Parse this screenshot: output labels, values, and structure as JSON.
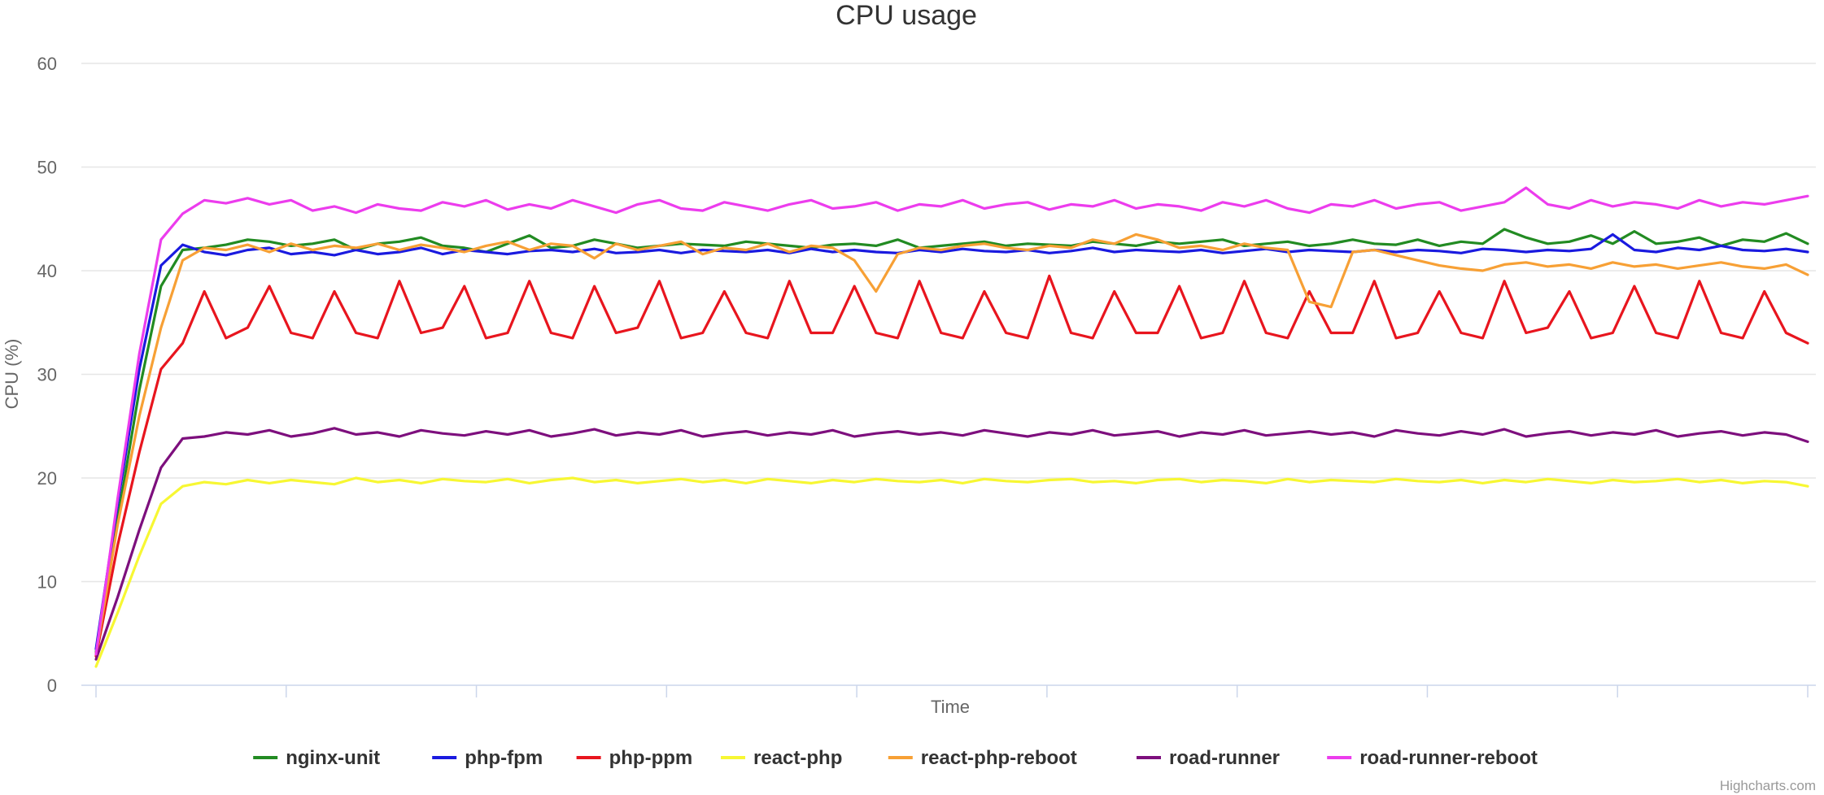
{
  "chart_data": {
    "type": "line",
    "title": "CPU usage",
    "xlabel": "Time",
    "ylabel": "CPU (%)",
    "ylim": [
      0,
      60
    ],
    "yticks": [
      0,
      10,
      20,
      30,
      40,
      50,
      60
    ],
    "grid": true,
    "legend_placement": "bottom-center",
    "credits": "Highcharts.com",
    "series": [
      {
        "name": "nginx-unit",
        "color": "#228b22",
        "values": [
          3.2,
          16.0,
          28.5,
          38.5,
          42.0,
          42.2,
          42.5,
          43.0,
          42.8,
          42.4,
          42.6,
          43.0,
          42.0,
          42.6,
          42.8,
          43.2,
          42.4,
          42.2,
          41.8,
          42.6,
          43.4,
          42.2,
          42.4,
          43.0,
          42.6,
          42.2,
          42.4,
          42.6,
          42.5,
          42.4,
          42.8,
          42.6,
          42.4,
          42.2,
          42.5,
          42.6,
          42.4,
          43.0,
          42.2,
          42.4,
          42.6,
          42.8,
          42.4,
          42.6,
          42.5,
          42.4,
          42.8,
          42.6,
          42.4,
          42.8,
          42.6,
          42.8,
          43.0,
          42.4,
          42.6,
          42.8,
          42.4,
          42.6,
          43.0,
          42.6,
          42.5,
          43.0,
          42.4,
          42.8,
          42.6,
          44.0,
          43.2,
          42.6,
          42.8,
          43.4,
          42.6,
          43.8,
          42.6,
          42.8,
          43.2,
          42.4,
          43.0,
          42.8,
          43.6,
          42.6
        ]
      },
      {
        "name": "php-fpm",
        "color": "#1a1adf",
        "values": [
          3.5,
          17.5,
          30.5,
          40.5,
          42.5,
          41.8,
          41.5,
          42.0,
          42.2,
          41.6,
          41.8,
          41.5,
          42.0,
          41.6,
          41.8,
          42.2,
          41.6,
          42.0,
          41.8,
          41.6,
          41.9,
          42.0,
          41.8,
          42.1,
          41.7,
          41.8,
          42.0,
          41.7,
          42.0,
          41.9,
          41.8,
          42.0,
          41.7,
          42.1,
          41.8,
          42.0,
          41.8,
          41.7,
          42.0,
          41.8,
          42.1,
          41.9,
          41.8,
          42.0,
          41.7,
          41.9,
          42.2,
          41.8,
          42.0,
          41.9,
          41.8,
          42.0,
          41.7,
          41.9,
          42.1,
          41.8,
          42.0,
          41.9,
          41.8,
          42.0,
          41.8,
          42.0,
          41.9,
          41.7,
          42.1,
          42.0,
          41.8,
          42.0,
          41.9,
          42.1,
          43.5,
          42.0,
          41.8,
          42.2,
          42.0,
          42.4,
          42.0,
          41.9,
          42.1,
          41.8
        ]
      },
      {
        "name": "php-ppm",
        "color": "#e8151e",
        "values": [
          2.8,
          13.5,
          22.5,
          30.5,
          33.0,
          38.0,
          33.5,
          34.5,
          38.5,
          34.0,
          33.5,
          38.0,
          34.0,
          33.5,
          39.0,
          34.0,
          34.5,
          38.5,
          33.5,
          34.0,
          39.0,
          34.0,
          33.5,
          38.5,
          34.0,
          34.5,
          39.0,
          33.5,
          34.0,
          38.0,
          34.0,
          33.5,
          39.0,
          34.0,
          34.0,
          38.5,
          34.0,
          33.5,
          39.0,
          34.0,
          33.5,
          38.0,
          34.0,
          33.5,
          39.5,
          34.0,
          33.5,
          38.0,
          34.0,
          34.0,
          38.5,
          33.5,
          34.0,
          39.0,
          34.0,
          33.5,
          38.0,
          34.0,
          34.0,
          39.0,
          33.5,
          34.0,
          38.0,
          34.0,
          33.5,
          39.0,
          34.0,
          34.5,
          38.0,
          33.5,
          34.0,
          38.5,
          34.0,
          33.5,
          39.0,
          34.0,
          33.5,
          38.0,
          34.0,
          33.0
        ]
      },
      {
        "name": "react-php",
        "color": "#f7f733",
        "values": [
          1.8,
          7.0,
          12.5,
          17.5,
          19.2,
          19.6,
          19.4,
          19.8,
          19.5,
          19.8,
          19.6,
          19.4,
          20.0,
          19.6,
          19.8,
          19.5,
          19.9,
          19.7,
          19.6,
          19.9,
          19.5,
          19.8,
          20.0,
          19.6,
          19.8,
          19.5,
          19.7,
          19.9,
          19.6,
          19.8,
          19.5,
          19.9,
          19.7,
          19.5,
          19.8,
          19.6,
          19.9,
          19.7,
          19.6,
          19.8,
          19.5,
          19.9,
          19.7,
          19.6,
          19.8,
          19.9,
          19.6,
          19.7,
          19.5,
          19.8,
          19.9,
          19.6,
          19.8,
          19.7,
          19.5,
          19.9,
          19.6,
          19.8,
          19.7,
          19.6,
          19.9,
          19.7,
          19.6,
          19.8,
          19.5,
          19.8,
          19.6,
          19.9,
          19.7,
          19.5,
          19.8,
          19.6,
          19.7,
          19.9,
          19.6,
          19.8,
          19.5,
          19.7,
          19.6,
          19.2
        ]
      },
      {
        "name": "react-php-reboot",
        "color": "#f7a035",
        "values": [
          3.0,
          15.5,
          26.0,
          34.5,
          41.0,
          42.2,
          42.0,
          42.5,
          41.8,
          42.6,
          42.0,
          42.4,
          42.2,
          42.6,
          42.0,
          42.5,
          42.2,
          41.8,
          42.4,
          42.8,
          42.0,
          42.6,
          42.4,
          41.2,
          42.6,
          42.0,
          42.4,
          42.8,
          41.6,
          42.2,
          42.0,
          42.6,
          41.8,
          42.4,
          42.2,
          41.0,
          38.0,
          41.6,
          42.2,
          42.0,
          42.4,
          42.6,
          42.2,
          42.0,
          42.4,
          42.2,
          43.0,
          42.6,
          43.5,
          43.0,
          42.2,
          42.4,
          42.0,
          42.6,
          42.2,
          42.0,
          37.0,
          36.5,
          41.8,
          42.0,
          41.5,
          41.0,
          40.5,
          40.2,
          40.0,
          40.6,
          40.8,
          40.4,
          40.6,
          40.2,
          40.8,
          40.4,
          40.6,
          40.2,
          40.5,
          40.8,
          40.4,
          40.2,
          40.6,
          39.6
        ]
      },
      {
        "name": "road-runner",
        "color": "#7d0f7d",
        "values": [
          2.5,
          8.5,
          15.0,
          21.0,
          23.8,
          24.0,
          24.4,
          24.2,
          24.6,
          24.0,
          24.3,
          24.8,
          24.2,
          24.4,
          24.0,
          24.6,
          24.3,
          24.1,
          24.5,
          24.2,
          24.6,
          24.0,
          24.3,
          24.7,
          24.1,
          24.4,
          24.2,
          24.6,
          24.0,
          24.3,
          24.5,
          24.1,
          24.4,
          24.2,
          24.6,
          24.0,
          24.3,
          24.5,
          24.2,
          24.4,
          24.1,
          24.6,
          24.3,
          24.0,
          24.4,
          24.2,
          24.6,
          24.1,
          24.3,
          24.5,
          24.0,
          24.4,
          24.2,
          24.6,
          24.1,
          24.3,
          24.5,
          24.2,
          24.4,
          24.0,
          24.6,
          24.3,
          24.1,
          24.5,
          24.2,
          24.7,
          24.0,
          24.3,
          24.5,
          24.1,
          24.4,
          24.2,
          24.6,
          24.0,
          24.3,
          24.5,
          24.1,
          24.4,
          24.2,
          23.5
        ]
      },
      {
        "name": "road-runner-reboot",
        "color": "#ec3ced",
        "values": [
          3.0,
          18.0,
          32.0,
          43.0,
          45.5,
          46.8,
          46.5,
          47.0,
          46.4,
          46.8,
          45.8,
          46.2,
          45.6,
          46.4,
          46.0,
          45.8,
          46.6,
          46.2,
          46.8,
          45.9,
          46.4,
          46.0,
          46.8,
          46.2,
          45.6,
          46.4,
          46.8,
          46.0,
          45.8,
          46.6,
          46.2,
          45.8,
          46.4,
          46.8,
          46.0,
          46.2,
          46.6,
          45.8,
          46.4,
          46.2,
          46.8,
          46.0,
          46.4,
          46.6,
          45.9,
          46.4,
          46.2,
          46.8,
          46.0,
          46.4,
          46.2,
          45.8,
          46.6,
          46.2,
          46.8,
          46.0,
          45.6,
          46.4,
          46.2,
          46.8,
          46.0,
          46.4,
          46.6,
          45.8,
          46.2,
          46.6,
          48.0,
          46.4,
          46.0,
          46.8,
          46.2,
          46.6,
          46.4,
          46.0,
          46.8,
          46.2,
          46.6,
          46.4,
          46.8,
          47.2
        ]
      }
    ]
  }
}
